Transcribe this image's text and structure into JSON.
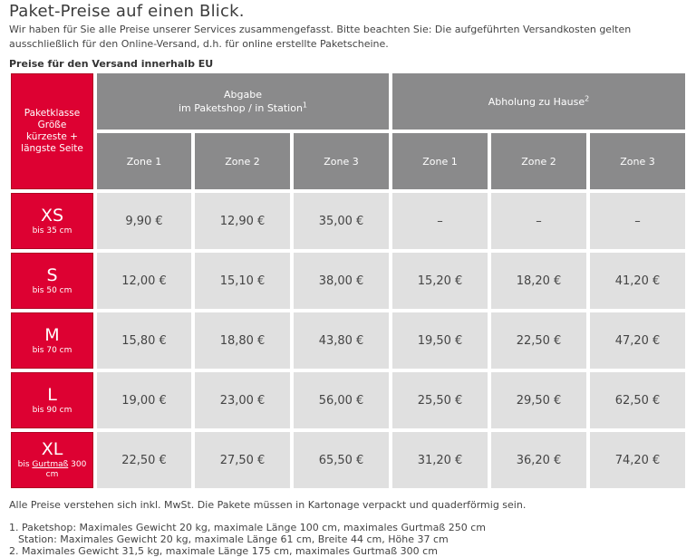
{
  "title": "Paket-Preise auf einen Blick.",
  "intro": "Wir haben für Sie alle Preise unserer Services zusammengefasst. Bitte beachten Sie: Die aufgeführten Versandkosten gelten ausschließlich für den Online-Versand, d.h. für online erstellte Paketscheine.",
  "section_label": "Preise für den Versand innerhalb EU",
  "colors": {
    "brand_red": "#dd0132",
    "header_grey": "#8a8a8b",
    "cell_grey": "#e0e0e0"
  },
  "table": {
    "corner_header": [
      "Paketklasse",
      "Größe",
      "kürzeste +",
      "längste Seite"
    ],
    "group_dropoff": {
      "line1": "Abgabe",
      "line2": "im Paketshop / in Station",
      "sup": "1"
    },
    "group_pickup": {
      "label": "Abholung zu Hause",
      "sup": "2"
    },
    "zones": [
      "Zone 1",
      "Zone 2",
      "Zone 3",
      "Zone 1",
      "Zone 2",
      "Zone 3"
    ],
    "rows": [
      {
        "size": "XS",
        "sub": "bis 35 cm",
        "prices": [
          "9,90 €",
          "12,90 €",
          "35,00 €",
          "–",
          "–",
          "–"
        ]
      },
      {
        "size": "S",
        "sub": "bis 50 cm",
        "prices": [
          "12,00 €",
          "15,10 €",
          "38,00 €",
          "15,20 €",
          "18,20 €",
          "41,20 €"
        ]
      },
      {
        "size": "M",
        "sub": "bis 70 cm",
        "prices": [
          "15,80 €",
          "18,80 €",
          "43,80 €",
          "19,50 €",
          "22,50 €",
          "47,20 €"
        ]
      },
      {
        "size": "L",
        "sub": "bis 90 cm",
        "prices": [
          "19,00 €",
          "23,00 €",
          "56,00 €",
          "25,50 €",
          "29,50 €",
          "62,50 €"
        ]
      },
      {
        "size": "XL",
        "sub_pre": "bis",
        "sub_link": "Gurtmaß",
        "sub_post": "300",
        "sub_line2": "cm",
        "prices": [
          "22,50 €",
          "27,50 €",
          "65,50 €",
          "31,20 €",
          "36,20 €",
          "74,20 €"
        ]
      }
    ]
  },
  "footnotes": {
    "vat": "Alle Preise verstehen sich inkl. MwSt. Die Pakete müssen in Kartonage verpackt und quaderförmig sein.",
    "note1": "1. Paketshop: Maximales Gewicht 20 kg, maximale Länge 100 cm, maximales Gurtmaß 250 cm",
    "note1b": "Station: Maximales Gewicht 20 kg, maximale Länge 61 cm, Breite 44 cm, Höhe 37 cm",
    "note2": "2. Maximales Gewicht 31,5 kg, maximale Länge 175 cm, maximales Gurtmaß 300 cm"
  }
}
